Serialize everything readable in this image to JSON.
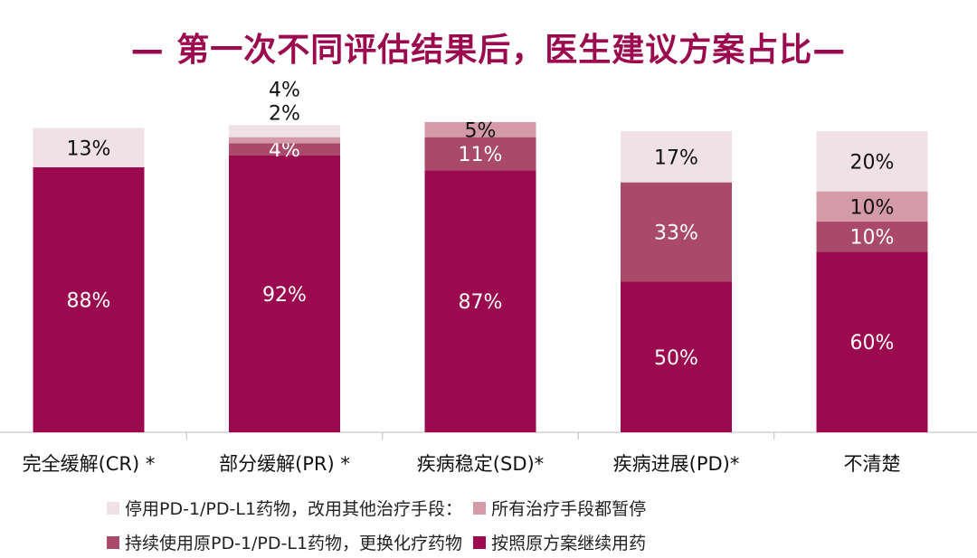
{
  "chart_data": {
    "type": "bar",
    "stacked": true,
    "title": "— 第一次不同评估结果后，医生建议方案占比—",
    "categories": [
      "完全缓解(CR)  *",
      "部分缓解(PR)  *",
      "疾病稳定(SD)*",
      "疾病进展(PD)*",
      "不清楚"
    ],
    "series": [
      {
        "name": "按照原方案继续用药",
        "color": "#9b0a4e",
        "values": [
          88,
          92,
          87,
          50,
          60
        ]
      },
      {
        "name": "持续使用原PD-1/PD-L1药物，更换化疗药物",
        "color": "#a94a6a",
        "values": [
          0,
          4,
          11,
          33,
          10
        ]
      },
      {
        "name": "所有治疗手段都暂停",
        "color": "#d49aa8",
        "values": [
          0,
          2,
          5,
          0,
          10
        ]
      },
      {
        "name": "停用PD-1/PD-L1药物，改用其他治疗手段：",
        "color": "#efe1e5",
        "values": [
          13,
          4,
          0,
          17,
          20
        ]
      }
    ],
    "ylim": [
      0,
      100
    ],
    "legend": "bottom"
  }
}
